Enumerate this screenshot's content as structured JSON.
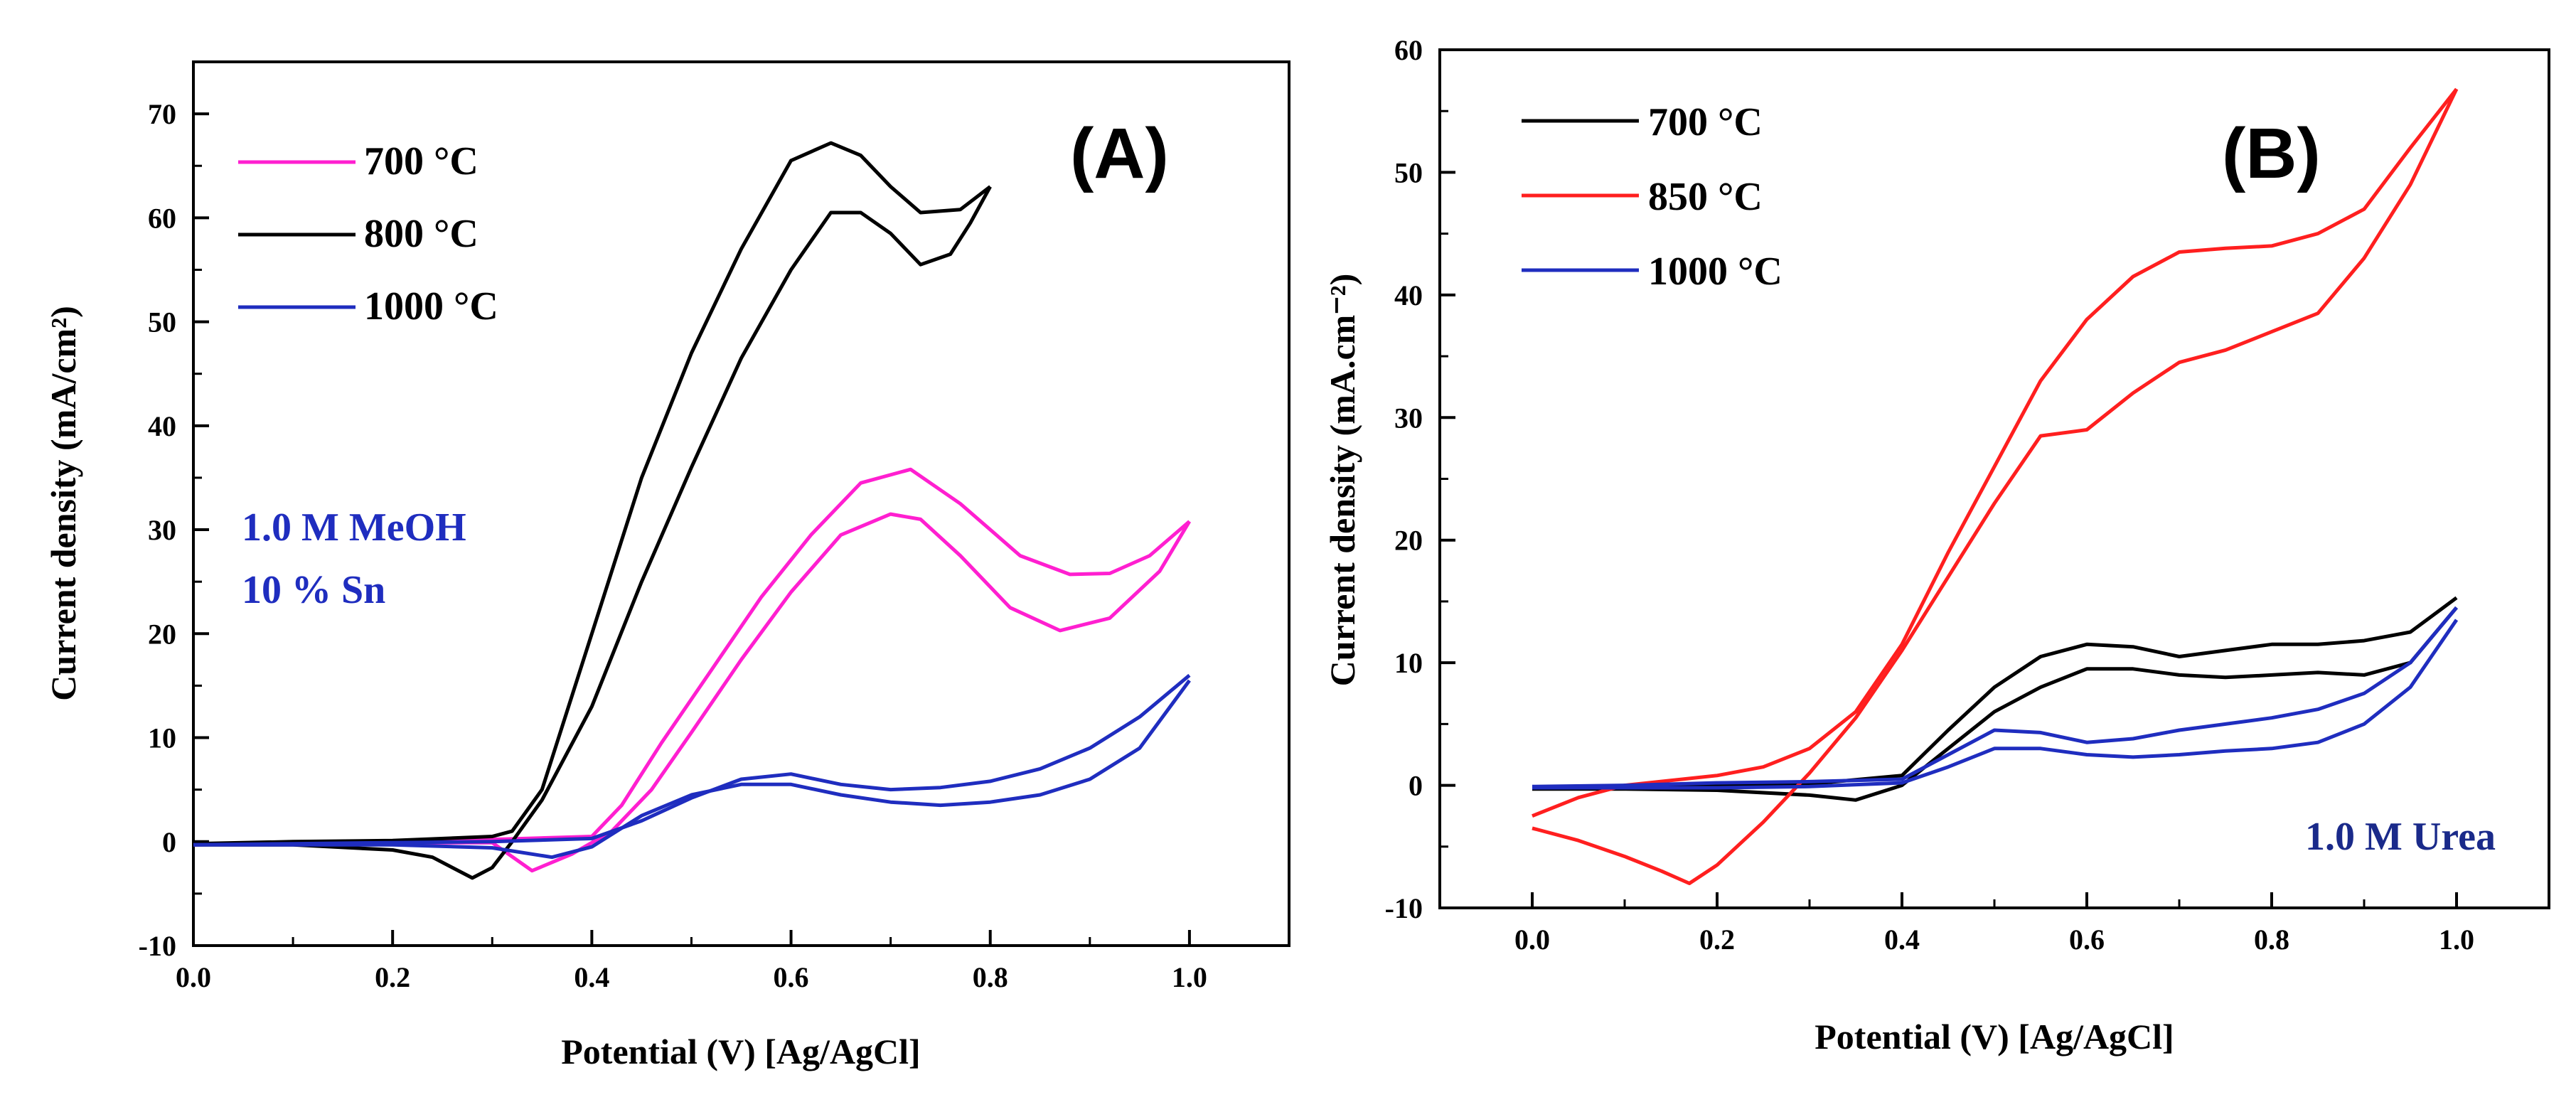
{
  "chart_data": [
    {
      "type": "line",
      "panel_label": "(A)",
      "xlabel": "Potential (V) [Ag/AgCl]",
      "ylabel": "Current density (mA/cm²)",
      "xlim": [
        0.0,
        1.1
      ],
      "ylim": [
        -10,
        75
      ],
      "xticks": [
        "0.0",
        "0.2",
        "0.4",
        "0.6",
        "0.8",
        "1.0"
      ],
      "xtick_values": [
        0.0,
        0.2,
        0.4,
        0.6,
        0.8,
        1.0
      ],
      "yticks": [
        "-10",
        "0",
        "10",
        "20",
        "30",
        "40",
        "50",
        "60",
        "70"
      ],
      "ytick_values": [
        -10,
        0,
        10,
        20,
        30,
        40,
        50,
        60,
        70
      ],
      "legend": {
        "placement": "top-left",
        "entries": [
          "700 °C",
          "800 °C",
          "1000 °C"
        ]
      },
      "annotations": [
        {
          "text": "1.0 M MeOH",
          "color": "#1f2dbf"
        },
        {
          "text": "10 % Sn",
          "color": "#1f2dbf"
        }
      ],
      "series": [
        {
          "name": "700 °C",
          "color": "#ff1fd0",
          "forward": [
            [
              0.0,
              -0.3
            ],
            [
              0.1,
              -0.2
            ],
            [
              0.2,
              -0.1
            ],
            [
              0.3,
              -0.1
            ],
            [
              0.34,
              -2.8
            ],
            [
              0.38,
              -1.2
            ],
            [
              0.42,
              1.0
            ],
            [
              0.46,
              5.0
            ],
            [
              0.5,
              10.5
            ],
            [
              0.55,
              17.5
            ],
            [
              0.6,
              24.0
            ],
            [
              0.65,
              29.5
            ],
            [
              0.7,
              31.5
            ],
            [
              0.73,
              31.0
            ],
            [
              0.77,
              27.5
            ],
            [
              0.82,
              22.5
            ],
            [
              0.87,
              20.3
            ],
            [
              0.92,
              21.5
            ],
            [
              0.97,
              26.0
            ],
            [
              1.0,
              30.8
            ]
          ],
          "reverse": [
            [
              1.0,
              30.8
            ],
            [
              0.96,
              27.5
            ],
            [
              0.92,
              25.8
            ],
            [
              0.88,
              25.7
            ],
            [
              0.83,
              27.5
            ],
            [
              0.77,
              32.5
            ],
            [
              0.72,
              35.8
            ],
            [
              0.67,
              34.5
            ],
            [
              0.62,
              29.5
            ],
            [
              0.57,
              23.5
            ],
            [
              0.52,
              16.5
            ],
            [
              0.47,
              9.5
            ],
            [
              0.43,
              3.5
            ],
            [
              0.4,
              0.5
            ],
            [
              0.3,
              0.2
            ],
            [
              0.2,
              0.0
            ],
            [
              0.1,
              -0.1
            ],
            [
              0.0,
              -0.3
            ]
          ]
        },
        {
          "name": "800 °C",
          "color": "#000000",
          "forward": [
            [
              0.0,
              -0.3
            ],
            [
              0.1,
              -0.3
            ],
            [
              0.2,
              -0.8
            ],
            [
              0.24,
              -1.5
            ],
            [
              0.28,
              -3.5
            ],
            [
              0.3,
              -2.5
            ],
            [
              0.32,
              0.0
            ],
            [
              0.35,
              4.0
            ],
            [
              0.4,
              13.0
            ],
            [
              0.45,
              25.0
            ],
            [
              0.5,
              36.0
            ],
            [
              0.55,
              46.5
            ],
            [
              0.6,
              55.0
            ],
            [
              0.64,
              60.5
            ],
            [
              0.67,
              60.5
            ],
            [
              0.7,
              58.5
            ],
            [
              0.73,
              55.5
            ],
            [
              0.76,
              56.5
            ],
            [
              0.78,
              59.5
            ],
            [
              0.8,
              63.0
            ]
          ],
          "reverse": [
            [
              0.8,
              63.0
            ],
            [
              0.77,
              60.8
            ],
            [
              0.73,
              60.5
            ],
            [
              0.7,
              63.0
            ],
            [
              0.67,
              66.0
            ],
            [
              0.64,
              67.2
            ],
            [
              0.6,
              65.5
            ],
            [
              0.55,
              57.0
            ],
            [
              0.5,
              47.0
            ],
            [
              0.45,
              35.0
            ],
            [
              0.4,
              20.0
            ],
            [
              0.35,
              5.0
            ],
            [
              0.32,
              1.0
            ],
            [
              0.3,
              0.5
            ],
            [
              0.2,
              0.1
            ],
            [
              0.1,
              0.0
            ],
            [
              0.0,
              -0.2
            ]
          ]
        },
        {
          "name": "1000 °C",
          "color": "#1f2dbf",
          "forward": [
            [
              0.0,
              -0.3
            ],
            [
              0.1,
              -0.3
            ],
            [
              0.2,
              -0.3
            ],
            [
              0.3,
              -0.6
            ],
            [
              0.36,
              -1.5
            ],
            [
              0.4,
              -0.5
            ],
            [
              0.45,
              2.5
            ],
            [
              0.5,
              4.5
            ],
            [
              0.55,
              5.5
            ],
            [
              0.6,
              5.5
            ],
            [
              0.65,
              4.5
            ],
            [
              0.7,
              3.8
            ],
            [
              0.75,
              3.5
            ],
            [
              0.8,
              3.8
            ],
            [
              0.85,
              4.5
            ],
            [
              0.9,
              6.0
            ],
            [
              0.95,
              9.0
            ],
            [
              1.0,
              15.5
            ]
          ],
          "reverse": [
            [
              1.0,
              16.0
            ],
            [
              0.95,
              12.0
            ],
            [
              0.9,
              9.0
            ],
            [
              0.85,
              7.0
            ],
            [
              0.8,
              5.8
            ],
            [
              0.75,
              5.2
            ],
            [
              0.7,
              5.0
            ],
            [
              0.65,
              5.5
            ],
            [
              0.6,
              6.5
            ],
            [
              0.55,
              6.0
            ],
            [
              0.5,
              4.2
            ],
            [
              0.45,
              2.0
            ],
            [
              0.4,
              0.3
            ],
            [
              0.3,
              0.0
            ],
            [
              0.2,
              -0.1
            ],
            [
              0.1,
              -0.2
            ],
            [
              0.0,
              -0.3
            ]
          ]
        }
      ]
    },
    {
      "type": "line",
      "panel_label": "(B)",
      "xlabel": "Potential (V) [Ag/AgCl]",
      "ylabel": "Current density (mA.cm⁻²)",
      "xlim": [
        -0.1,
        1.1
      ],
      "ylim": [
        -10,
        60
      ],
      "xticks": [
        "0.0",
        "0.2",
        "0.4",
        "0.6",
        "0.8",
        "1.0"
      ],
      "xtick_values": [
        0.0,
        0.2,
        0.4,
        0.6,
        0.8,
        1.0
      ],
      "yticks": [
        "-10",
        "0",
        "10",
        "20",
        "30",
        "40",
        "50",
        "60"
      ],
      "ytick_values": [
        -10,
        0,
        10,
        20,
        30,
        40,
        50,
        60
      ],
      "legend": {
        "placement": "top-left",
        "entries": [
          "700 °C",
          "850 °C",
          "1000 °C"
        ]
      },
      "annotations": [
        {
          "text": "1.0 M Urea",
          "color": "#1a2a8a"
        }
      ],
      "series": [
        {
          "name": "700 °C",
          "color": "#000000",
          "forward": [
            [
              0.0,
              -0.3
            ],
            [
              0.1,
              -0.3
            ],
            [
              0.2,
              -0.4
            ],
            [
              0.3,
              -0.8
            ],
            [
              0.35,
              -1.2
            ],
            [
              0.4,
              0.0
            ],
            [
              0.45,
              3.0
            ],
            [
              0.5,
              6.0
            ],
            [
              0.55,
              8.0
            ],
            [
              0.6,
              9.5
            ],
            [
              0.65,
              9.5
            ],
            [
              0.7,
              9.0
            ],
            [
              0.75,
              8.8
            ],
            [
              0.8,
              9.0
            ],
            [
              0.85,
              9.2
            ],
            [
              0.9,
              9.0
            ],
            [
              0.95,
              10.0
            ],
            [
              1.0,
              14.5
            ]
          ],
          "reverse": [
            [
              1.0,
              15.3
            ],
            [
              0.95,
              12.5
            ],
            [
              0.9,
              11.8
            ],
            [
              0.85,
              11.5
            ],
            [
              0.8,
              11.5
            ],
            [
              0.75,
              11.0
            ],
            [
              0.7,
              10.5
            ],
            [
              0.65,
              11.3
            ],
            [
              0.6,
              11.5
            ],
            [
              0.55,
              10.5
            ],
            [
              0.5,
              8.0
            ],
            [
              0.45,
              4.5
            ],
            [
              0.4,
              0.8
            ],
            [
              0.3,
              0.1
            ],
            [
              0.2,
              0.0
            ],
            [
              0.1,
              -0.1
            ],
            [
              0.0,
              -0.2
            ]
          ]
        },
        {
          "name": "850 °C",
          "color": "#ff1f1f",
          "forward": [
            [
              0.0,
              -3.5
            ],
            [
              0.05,
              -4.5
            ],
            [
              0.1,
              -5.8
            ],
            [
              0.14,
              -7.0
            ],
            [
              0.17,
              -8.0
            ],
            [
              0.2,
              -6.5
            ],
            [
              0.25,
              -3.0
            ],
            [
              0.3,
              1.0
            ],
            [
              0.35,
              5.5
            ],
            [
              0.4,
              11.0
            ],
            [
              0.45,
              17.0
            ],
            [
              0.5,
              23.0
            ],
            [
              0.55,
              28.5
            ],
            [
              0.6,
              29.0
            ],
            [
              0.65,
              32.0
            ],
            [
              0.7,
              34.5
            ],
            [
              0.75,
              35.5
            ],
            [
              0.8,
              37.0
            ],
            [
              0.85,
              38.5
            ],
            [
              0.9,
              43.0
            ],
            [
              0.95,
              49.0
            ],
            [
              1.0,
              56.8
            ]
          ],
          "reverse": [
            [
              1.0,
              56.8
            ],
            [
              0.95,
              52.0
            ],
            [
              0.9,
              47.0
            ],
            [
              0.85,
              45.0
            ],
            [
              0.8,
              44.0
            ],
            [
              0.75,
              43.8
            ],
            [
              0.7,
              43.5
            ],
            [
              0.65,
              41.5
            ],
            [
              0.6,
              38.0
            ],
            [
              0.55,
              33.0
            ],
            [
              0.5,
              26.0
            ],
            [
              0.45,
              19.0
            ],
            [
              0.4,
              11.5
            ],
            [
              0.35,
              6.0
            ],
            [
              0.3,
              3.0
            ],
            [
              0.25,
              1.5
            ],
            [
              0.2,
              0.8
            ],
            [
              0.1,
              0.0
            ],
            [
              0.05,
              -1.0
            ],
            [
              0.0,
              -2.5
            ]
          ]
        },
        {
          "name": "1000 °C",
          "color": "#1f2dbf",
          "forward": [
            [
              0.0,
              -0.2
            ],
            [
              0.1,
              -0.2
            ],
            [
              0.2,
              -0.2
            ],
            [
              0.3,
              -0.1
            ],
            [
              0.4,
              0.2
            ],
            [
              0.45,
              1.5
            ],
            [
              0.5,
              3.0
            ],
            [
              0.55,
              3.0
            ],
            [
              0.6,
              2.5
            ],
            [
              0.65,
              2.3
            ],
            [
              0.7,
              2.5
            ],
            [
              0.75,
              2.8
            ],
            [
              0.8,
              3.0
            ],
            [
              0.85,
              3.5
            ],
            [
              0.9,
              5.0
            ],
            [
              0.95,
              8.0
            ],
            [
              1.0,
              13.5
            ]
          ],
          "reverse": [
            [
              1.0,
              14.5
            ],
            [
              0.95,
              10.0
            ],
            [
              0.9,
              7.5
            ],
            [
              0.85,
              6.2
            ],
            [
              0.8,
              5.5
            ],
            [
              0.75,
              5.0
            ],
            [
              0.7,
              4.5
            ],
            [
              0.65,
              3.8
            ],
            [
              0.6,
              3.5
            ],
            [
              0.55,
              4.3
            ],
            [
              0.5,
              4.5
            ],
            [
              0.45,
              2.5
            ],
            [
              0.4,
              0.5
            ],
            [
              0.3,
              0.3
            ],
            [
              0.2,
              0.2
            ],
            [
              0.1,
              0.0
            ],
            [
              0.0,
              -0.1
            ]
          ]
        }
      ]
    }
  ]
}
